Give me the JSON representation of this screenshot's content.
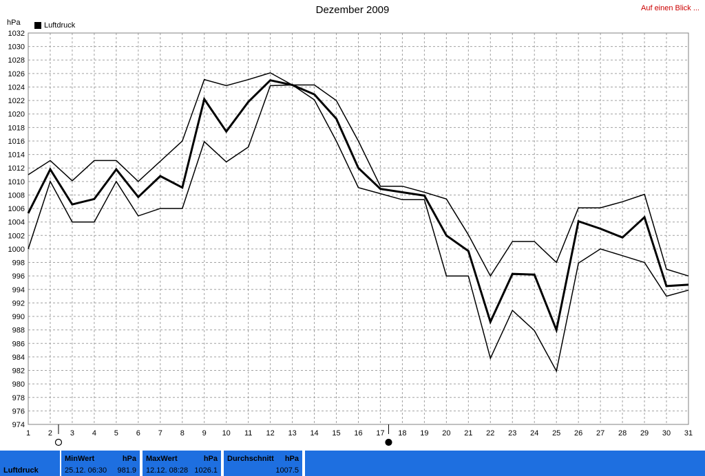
{
  "header": {
    "title": "Dezember 2009",
    "link_label": "Auf einen Blick ...",
    "unit": "hPa"
  },
  "legend": {
    "label": "Luftdruck"
  },
  "footer": {
    "label": "Luftdruck",
    "min": {
      "title": "MinWert",
      "unit": "hPa",
      "date": "25.12.  06:30",
      "value": "981.9"
    },
    "max": {
      "title": "MaxWert",
      "unit": "hPa",
      "date": "12.12.  08:28",
      "value": "1026.1"
    },
    "avg": {
      "title": "Durchschnitt",
      "unit": "hPa",
      "value": "1007.5"
    }
  },
  "colors": {
    "footer_bg": "#1e6fe0",
    "grid": "#a0a0a0",
    "line": "#000000",
    "link": "#cc0000"
  },
  "chart_data": {
    "type": "line",
    "title": "Dezember 2009",
    "ylabel": "hPa",
    "xlabel": "",
    "ylim": [
      974,
      1032
    ],
    "ytick_step": 2,
    "grid": true,
    "legend_position": "top-left",
    "x": [
      1,
      2,
      3,
      4,
      5,
      6,
      7,
      8,
      9,
      10,
      11,
      12,
      13,
      14,
      15,
      16,
      17,
      18,
      19,
      20,
      21,
      22,
      23,
      24,
      25,
      26,
      27,
      28,
      29,
      30,
      31
    ],
    "series": [
      {
        "name": "Luftdruck",
        "role": "average",
        "values": [
          1005.3,
          1011.8,
          1006.6,
          1007.4,
          1011.8,
          1007.7,
          1010.8,
          1009.1,
          1022.2,
          1017.4,
          1021.8,
          1025.0,
          1024.3,
          1022.9,
          1019.3,
          1012.0,
          1008.9,
          1008.4,
          1007.9,
          1002.0,
          999.7,
          989.2,
          996.3,
          996.2,
          988.0,
          1004.1,
          1003.0,
          1001.7,
          1004.7,
          994.5,
          994.7
        ]
      },
      {
        "role": "max",
        "values": [
          1011.0,
          1013.1,
          1010.1,
          1013.1,
          1013.1,
          1010.0,
          1013.0,
          1016.0,
          1025.1,
          1024.2,
          1025.1,
          1026.1,
          1024.3,
          1024.3,
          1022.0,
          1016.0,
          1009.3,
          1009.3,
          1008.4,
          1007.4,
          1002.1,
          996.0,
          1001.1,
          1001.1,
          998.0,
          1006.1,
          1006.1,
          1007.0,
          1008.1,
          997.0,
          996.0
        ]
      },
      {
        "role": "min",
        "values": [
          1000.0,
          1010.0,
          1004.0,
          1004.0,
          1010.0,
          1004.9,
          1006.0,
          1006.0,
          1015.9,
          1012.9,
          1015.1,
          1024.2,
          1024.3,
          1022.1,
          1016.0,
          1009.1,
          1008.2,
          1007.3,
          1007.3,
          996.0,
          996.0,
          983.8,
          990.9,
          987.9,
          981.9,
          997.9,
          1000.0,
          999.0,
          998.0,
          993.0,
          993.9
        ]
      }
    ],
    "markers": [
      {
        "x": 2,
        "symbol": "open-circle"
      },
      {
        "x": 17,
        "symbol": "filled-circle"
      }
    ]
  }
}
